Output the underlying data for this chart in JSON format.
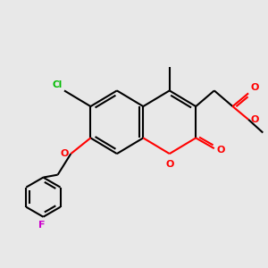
{
  "bg_color": "#e8e8e8",
  "bond_color": "#000000",
  "bond_width": 1.5,
  "atom_colors": {
    "O": "#ff0000",
    "Cl": "#00bb00",
    "F": "#cc00cc",
    "C": "#000000"
  },
  "figsize": [
    3.0,
    3.0
  ],
  "dpi": 100
}
